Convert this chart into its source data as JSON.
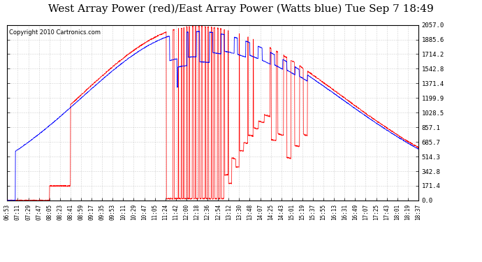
{
  "title": "West Array Power (red)/East Array Power (Watts blue) Tue Sep 7 18:49",
  "copyright": "Copyright 2010 Cartronics.com",
  "background_color": "#ffffff",
  "plot_bg_color": "#ffffff",
  "grid_color": "#aaaaaa",
  "red_color": "#ff0000",
  "blue_color": "#0000ff",
  "title_fontsize": 11,
  "ylabel_right": [
    "2057.0",
    "1885.6",
    "1714.2",
    "1542.8",
    "1371.4",
    "1199.9",
    "1028.5",
    "857.1",
    "685.7",
    "514.3",
    "342.8",
    "171.4",
    "0.0"
  ],
  "ymax": 2057.0,
  "ymin": 0.0,
  "x_tick_labels": [
    "06:53",
    "07:11",
    "07:29",
    "07:47",
    "08:05",
    "08:23",
    "08:41",
    "08:59",
    "09:17",
    "09:35",
    "09:53",
    "10:11",
    "10:29",
    "10:47",
    "11:05",
    "11:24",
    "11:42",
    "12:00",
    "12:18",
    "12:36",
    "12:54",
    "13:12",
    "13:30",
    "13:48",
    "14:07",
    "14:25",
    "14:43",
    "15:01",
    "15:19",
    "15:37",
    "15:55",
    "16:13",
    "16:31",
    "16:49",
    "17:07",
    "17:25",
    "17:43",
    "18:01",
    "18:19",
    "18:37"
  ]
}
